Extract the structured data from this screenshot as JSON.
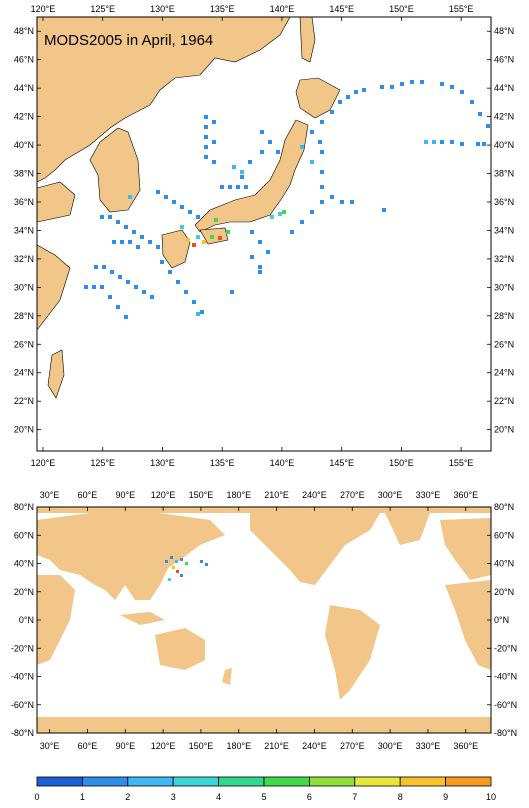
{
  "title": "MODS2005 in April, 1964",
  "top_map": {
    "lon_labels": [
      "120°E",
      "125°E",
      "130°E",
      "135°E",
      "140°E",
      "145°E",
      "150°E",
      "155°E"
    ],
    "lat_labels": [
      "48°N",
      "46°N",
      "44°N",
      "42°N",
      "40°N",
      "38°N",
      "36°N",
      "34°N",
      "32°N",
      "30°N",
      "28°N",
      "26°N",
      "24°N",
      "22°N",
      "20°N"
    ]
  },
  "bottom_map": {
    "lon_labels": [
      "30°E",
      "60°E",
      "90°E",
      "120°E",
      "150°E",
      "180°E",
      "210°E",
      "240°E",
      "270°E",
      "300°E",
      "330°E",
      "360°E"
    ],
    "lat_labels": [
      "80°N",
      "60°N",
      "40°N",
      "20°N",
      "0°N",
      "-20°N",
      "-40°N",
      "-60°N",
      "-80°N"
    ]
  },
  "colorbar": {
    "labels": [
      "0",
      "1",
      "2",
      "3",
      "4",
      "5",
      "6",
      "7",
      "8",
      "9",
      "10"
    ],
    "colors": [
      "#1f5fd6",
      "#2f8fe8",
      "#3fb7f0",
      "#39d6d8",
      "#2fd98e",
      "#3fd94a",
      "#8fdf3a",
      "#e8e83a",
      "#f7c22a",
      "#f79a1f",
      "#e8501c"
    ]
  },
  "colors": {
    "land": "#f2c588",
    "ocean": "#ffffff"
  }
}
